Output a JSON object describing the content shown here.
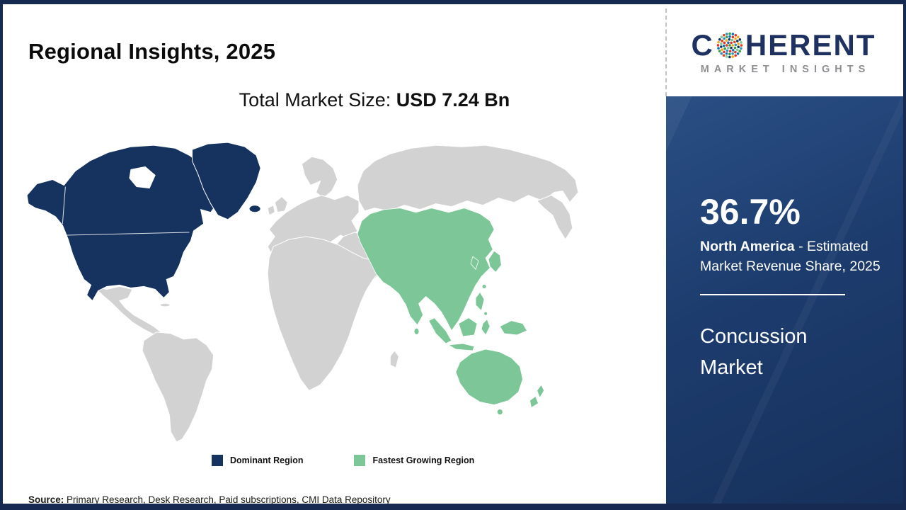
{
  "header": {
    "title": "Regional Insights, 2025"
  },
  "market_size": {
    "label": "Total Market Size: ",
    "value": "USD 7.24 Bn"
  },
  "logo": {
    "word_part1": "C",
    "word_part2": "HERENT",
    "subtitle": "MARKET INSIGHTS",
    "brand_color": "#1e3160",
    "globe_dot_colors": [
      "#3a9e49",
      "#0f71b5",
      "#e63329",
      "#f6a81c",
      "#15355e",
      "#7dc698",
      "#d9441f",
      "#2b8fc1"
    ]
  },
  "sidebar": {
    "share_value": "36.7%",
    "region_name": "North America",
    "share_description": " - Estimated Market Revenue Share, 2025",
    "market_name": "Concussion Market",
    "background_color": "#1d3c6e",
    "text_color": "#ffffff"
  },
  "footer": {
    "source_label": "Source:",
    "source_text": " Primary Research, Desk Research, Paid subscriptions, CMI Data Repository"
  },
  "chart_data": {
    "type": "heatmap",
    "subtype": "choropleth_world_map",
    "title": "Regional Insights, 2025",
    "subtitle": "Total Market Size: USD 7.24 Bn",
    "total_market_size_usd_bn": 7.24,
    "market": "Concussion Market",
    "regions": [
      {
        "name": "North America",
        "classification": "Dominant Region",
        "estimated_market_revenue_share_2025": "36.7%",
        "color": "#16335f"
      },
      {
        "name": "Asia Pacific",
        "classification": "Fastest Growing Region",
        "color": "#7dc698"
      },
      {
        "name": "Rest of World",
        "classification": "Not highlighted",
        "color": "#d2d2d2"
      }
    ],
    "legend": [
      {
        "label": "Dominant Region",
        "color": "#16335f"
      },
      {
        "label": "Fastest Growing Region",
        "color": "#7dc698"
      }
    ],
    "legend_position": "bottom"
  }
}
